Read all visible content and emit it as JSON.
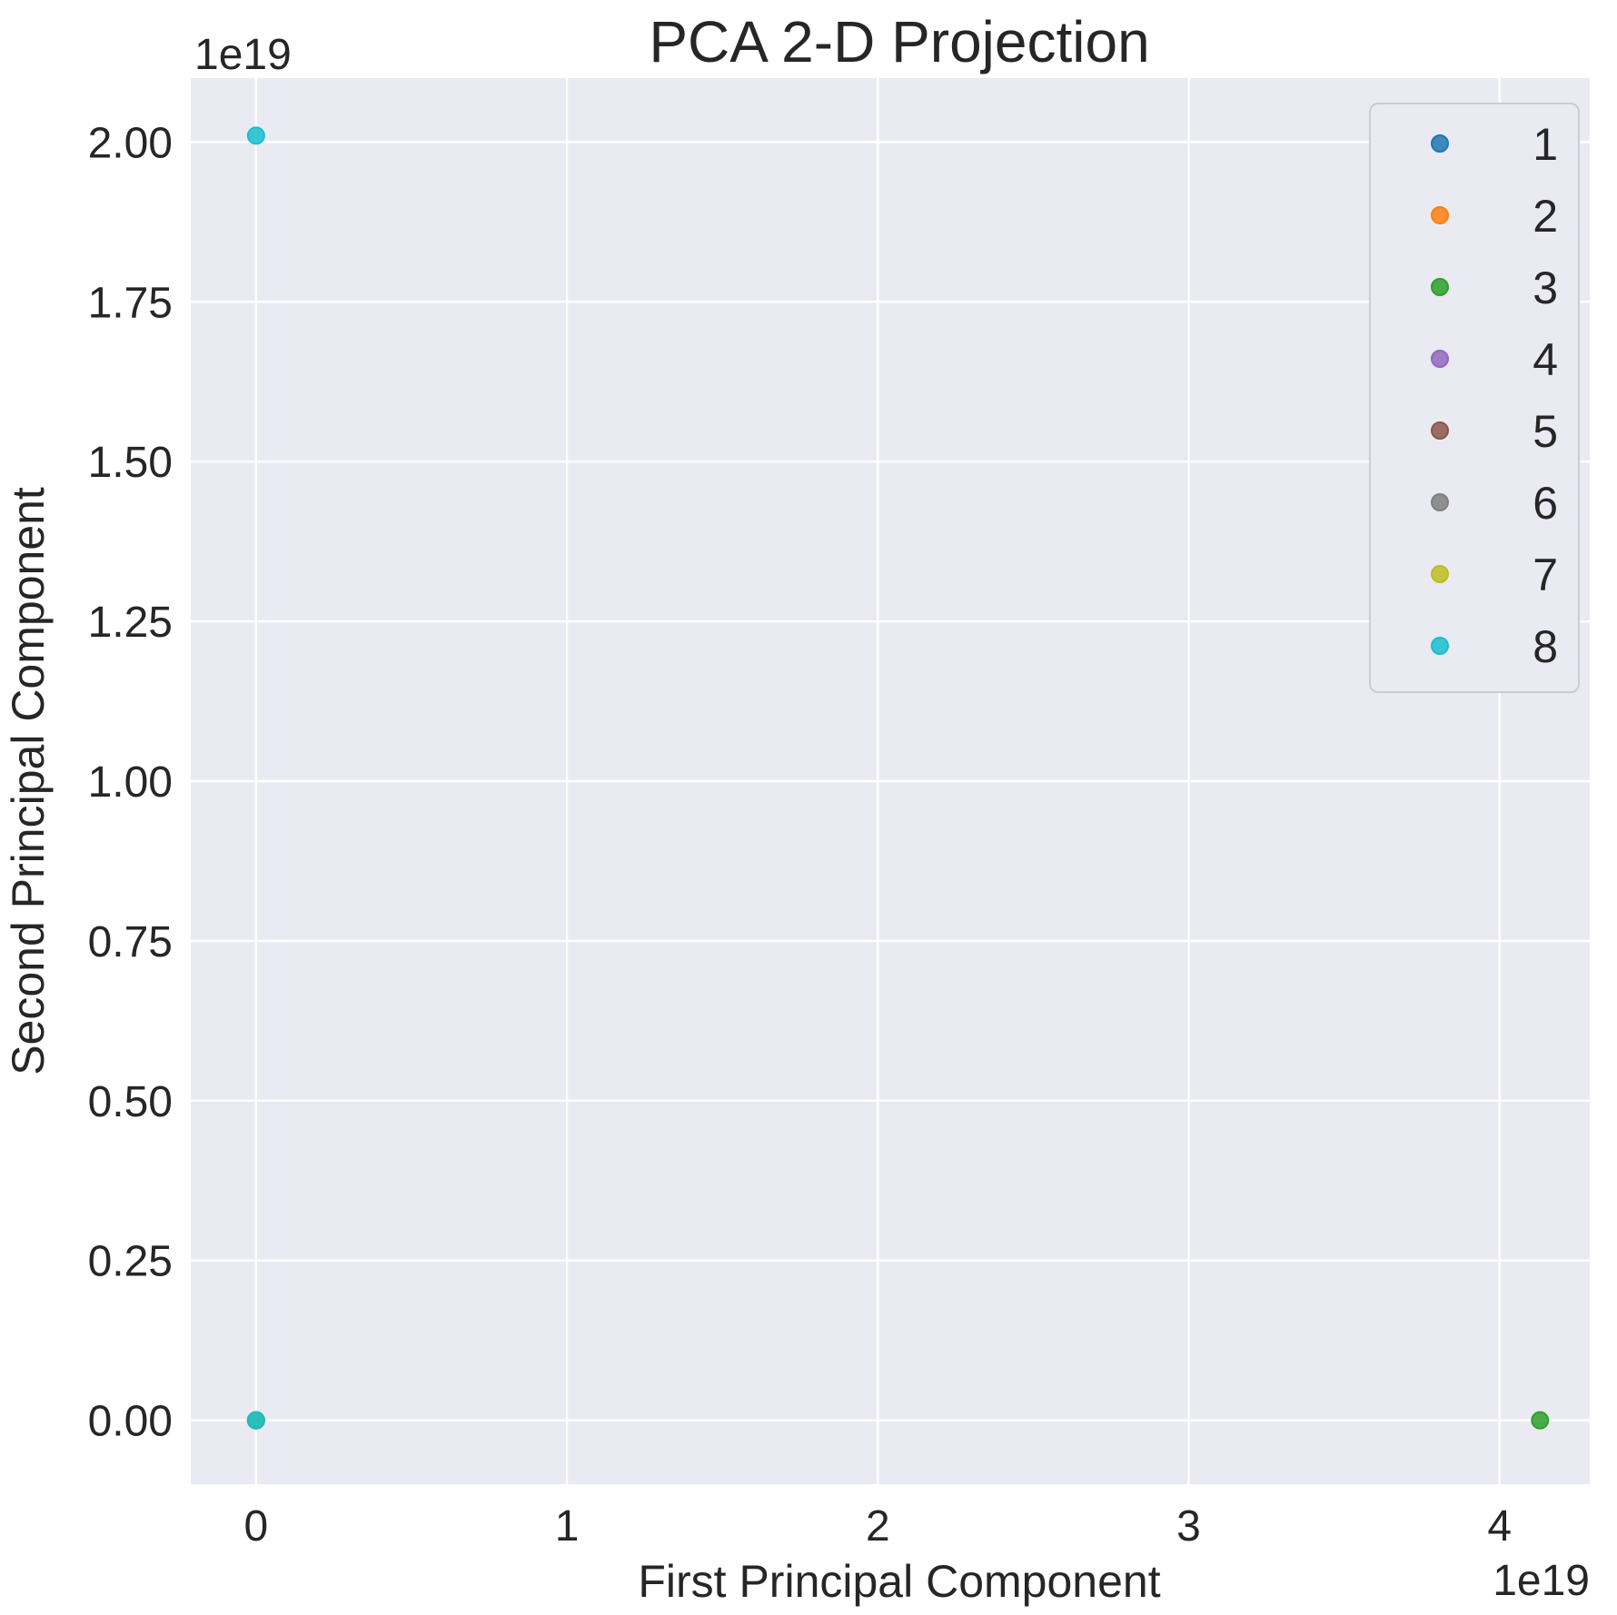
{
  "chart_data": {
    "type": "scatter",
    "title": "PCA 2-D Projection",
    "xlabel": "First Principal Component",
    "ylabel": "Second Principal Component",
    "x_offset_label": "1e19",
    "y_offset_label": "1e19",
    "xlim": [
      -0.21,
      4.29
    ],
    "ylim": [
      -0.1,
      2.1
    ],
    "x_ticks": [
      0,
      1,
      2,
      3,
      4
    ],
    "x_tick_labels": [
      "0",
      "1",
      "2",
      "3",
      "4"
    ],
    "y_ticks": [
      0,
      0.25,
      0.5,
      0.75,
      1.0,
      1.25,
      1.5,
      1.75,
      2.0
    ],
    "y_tick_labels": [
      "0.00",
      "0.25",
      "0.50",
      "0.75",
      "1.00",
      "1.25",
      "1.50",
      "1.75",
      "2.00"
    ],
    "grid": true,
    "background": "#eaeaf2",
    "legend_position": "top-right",
    "series": [
      {
        "name": "1",
        "color": "#1f77b4",
        "points": [
          [
            0,
            0
          ]
        ]
      },
      {
        "name": "2",
        "color": "#ff7f0e",
        "points": [
          [
            0,
            0
          ]
        ]
      },
      {
        "name": "3",
        "color": "#2ca02c",
        "points": [
          [
            0,
            0
          ],
          [
            4.13,
            0
          ]
        ]
      },
      {
        "name": "4",
        "color": "#9467bd",
        "points": [
          [
            0,
            0
          ]
        ]
      },
      {
        "name": "5",
        "color": "#8c564b",
        "points": [
          [
            0,
            0
          ]
        ]
      },
      {
        "name": "6",
        "color": "#7f7f7f",
        "points": [
          [
            0,
            0
          ]
        ]
      },
      {
        "name": "7",
        "color": "#bcbd22",
        "points": [
          [
            0,
            0
          ]
        ]
      },
      {
        "name": "8",
        "color": "#17becf",
        "points": [
          [
            0,
            0
          ],
          [
            0,
            2.01
          ]
        ]
      }
    ]
  }
}
